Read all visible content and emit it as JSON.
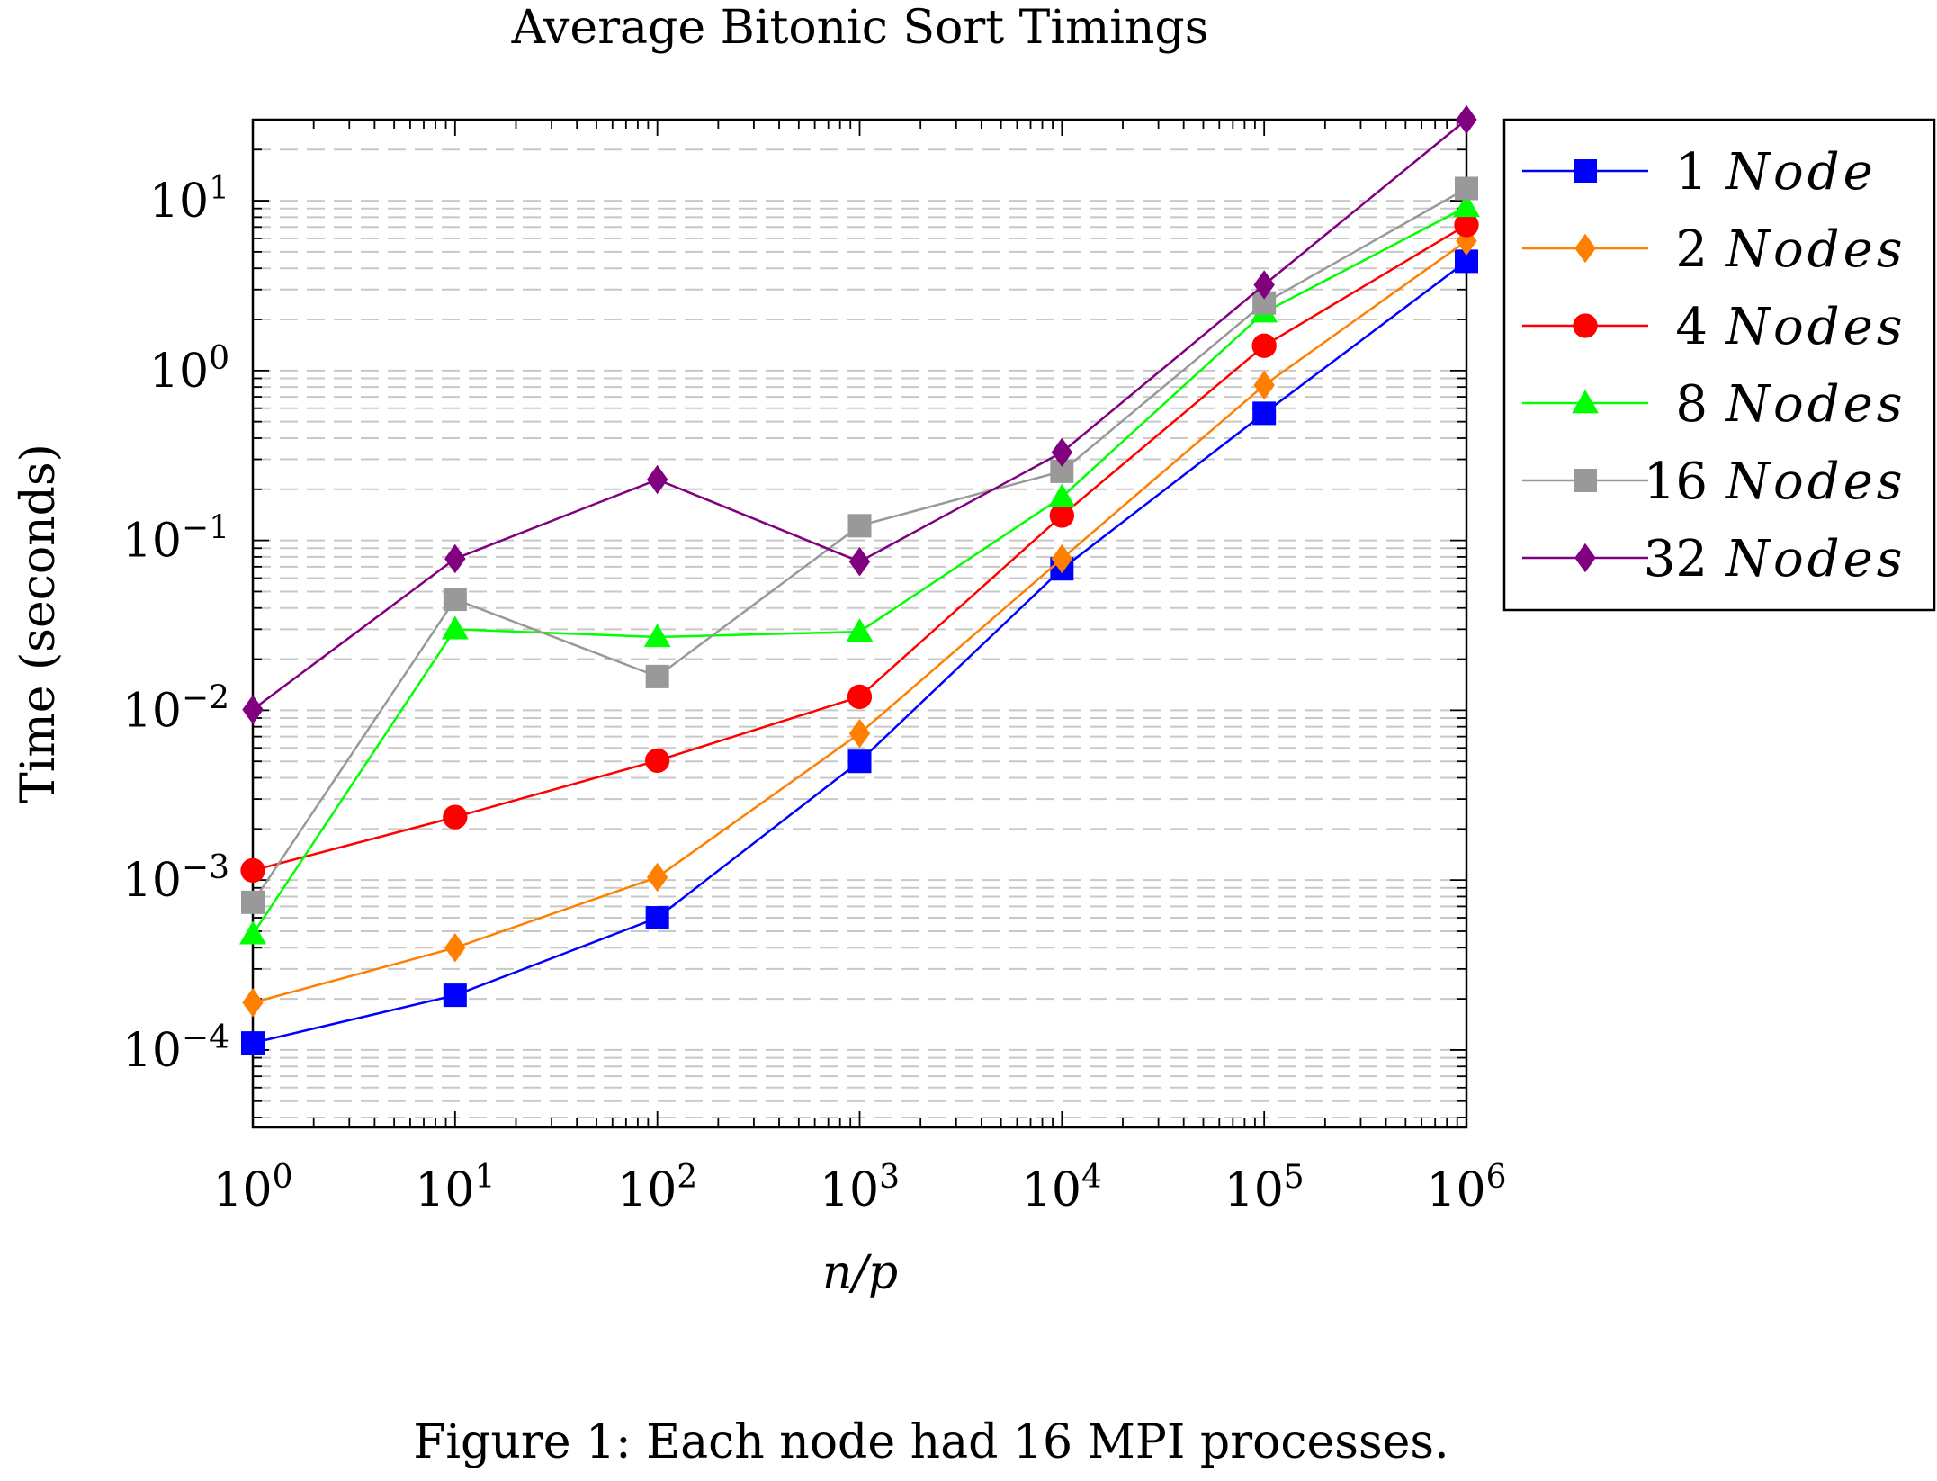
{
  "chart_data": {
    "type": "line",
    "title": "Average Bitonic Sort Timings",
    "xlabel": "n/p",
    "ylabel": "Time (seconds)",
    "x_scale": "log",
    "y_scale": "log",
    "x": [
      1,
      10,
      100,
      1000,
      10000,
      100000,
      1000000
    ],
    "x_tick_labels": [
      {
        "base": "10",
        "exp": "0"
      },
      {
        "base": "10",
        "exp": "1"
      },
      {
        "base": "10",
        "exp": "2"
      },
      {
        "base": "10",
        "exp": "3"
      },
      {
        "base": "10",
        "exp": "4"
      },
      {
        "base": "10",
        "exp": "5"
      },
      {
        "base": "10",
        "exp": "6"
      }
    ],
    "y_tick_labels": [
      {
        "base": "10",
        "exp": "1"
      },
      {
        "base": "10",
        "exp": "0"
      },
      {
        "base": "10",
        "exp": "−1"
      },
      {
        "base": "10",
        "exp": "−2"
      },
      {
        "base": "10",
        "exp": "−3"
      },
      {
        "base": "10",
        "exp": "−4"
      }
    ],
    "xlim": [
      1,
      1000000
    ],
    "ylim": [
      3.5e-05,
      30
    ],
    "grid": "y-major-and-minor-dashed",
    "legend_position": "outside-right",
    "series": [
      {
        "name": "1",
        "name_italic": "Node",
        "color": "#0000ff",
        "marker": "square",
        "values": [
          0.00011,
          0.00021,
          0.0006,
          0.005,
          0.068,
          0.56,
          4.4
        ]
      },
      {
        "name": "2",
        "name_italic": "Nodes",
        "color": "#ff8000",
        "marker": "diamond",
        "values": [
          0.00019,
          0.0004,
          0.00104,
          0.0073,
          0.078,
          0.82,
          5.8
        ]
      },
      {
        "name": "4",
        "name_italic": "Nodes",
        "color": "#ff0000",
        "marker": "circle",
        "values": [
          0.00114,
          0.00235,
          0.00505,
          0.012,
          0.14,
          1.4,
          7.2
        ]
      },
      {
        "name": "8",
        "name_italic": "Nodes",
        "color": "#00ff00",
        "marker": "triangle",
        "values": [
          0.00048,
          0.03,
          0.027,
          0.029,
          0.18,
          2.2,
          9.2
        ]
      },
      {
        "name": "16",
        "name_italic": "Nodes",
        "color": "#999999",
        "marker": "square",
        "values": [
          0.00074,
          0.045,
          0.0158,
          0.122,
          0.255,
          2.5,
          11.8
        ]
      },
      {
        "name": "32",
        "name_italic": "Nodes",
        "color": "#800080",
        "marker": "diamond",
        "values": [
          0.0101,
          0.078,
          0.228,
          0.075,
          0.33,
          3.2,
          30
        ]
      }
    ]
  },
  "caption": "Figure 1: Each node had 16 MPI processes."
}
